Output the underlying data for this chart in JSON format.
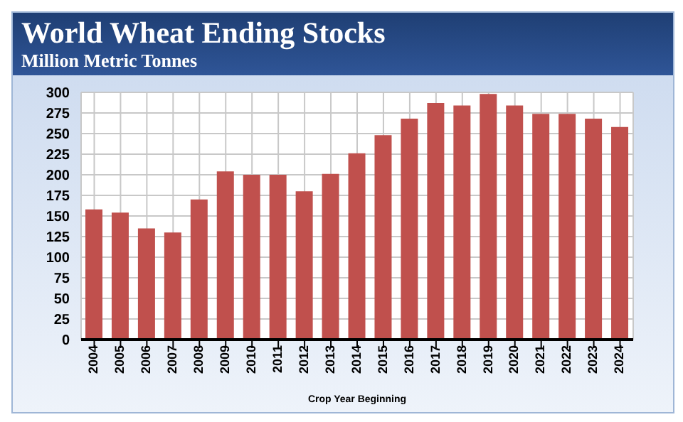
{
  "chart_data": {
    "type": "bar",
    "title": "World Wheat Ending Stocks",
    "subtitle": "Million Metric Tonnes",
    "xlabel": "Crop Year Beginning",
    "categories": [
      "2004",
      "2005",
      "2006",
      "2007",
      "2008",
      "2009",
      "2010",
      "2011",
      "2012",
      "2013",
      "2014",
      "2015",
      "2016",
      "2017",
      "2018",
      "2019",
      "2020",
      "2021",
      "2022",
      "2023",
      "2024"
    ],
    "values": [
      158,
      154,
      135,
      130,
      170,
      204,
      200,
      200,
      180,
      201,
      226,
      248,
      268,
      287,
      284,
      298,
      284,
      274,
      274,
      268,
      258
    ],
    "color": "#c0504d",
    "ylim": [
      0,
      300
    ],
    "yticks": [
      0,
      25,
      50,
      75,
      100,
      125,
      150,
      175,
      200,
      225,
      250,
      275,
      300
    ],
    "grid": true
  }
}
